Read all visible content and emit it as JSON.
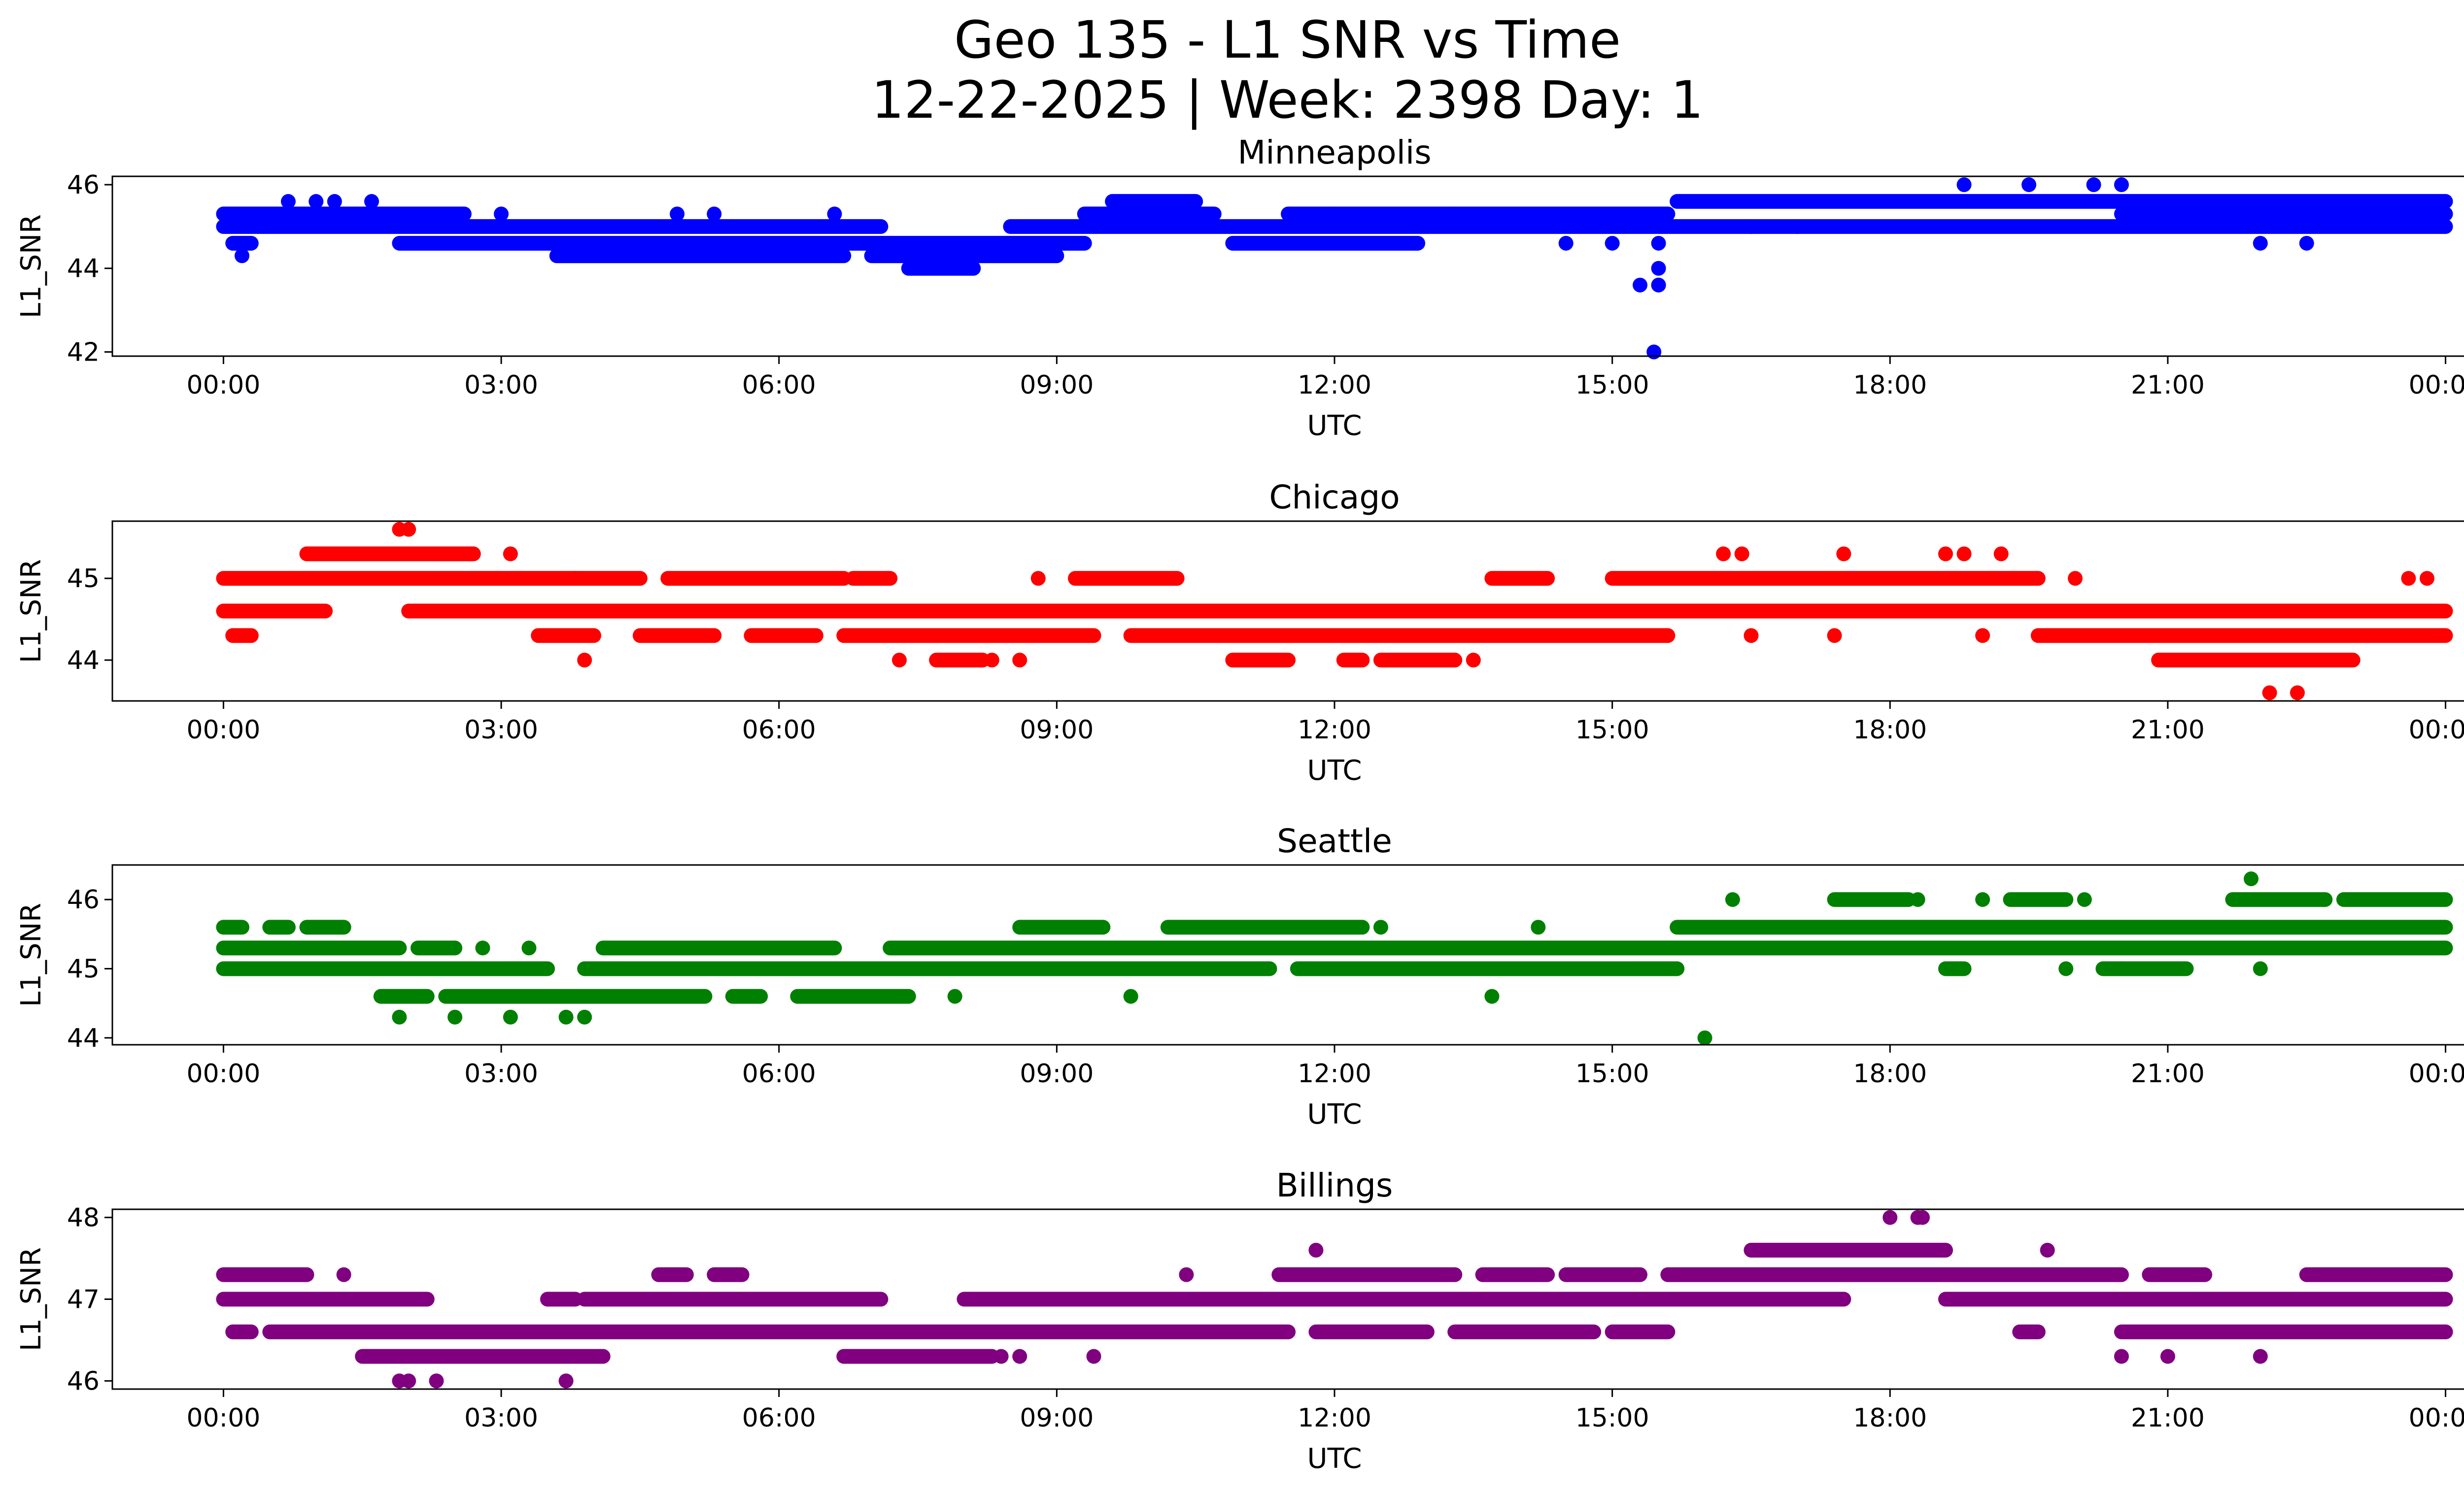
{
  "figure": {
    "title_line1": "Geo 135 - L1 SNR vs Time",
    "title_line2": "12-22-2025 | Week: 2398 Day: 1"
  },
  "chart_data": [
    {
      "type": "scatter",
      "title": "Minneapolis",
      "xlabel": "UTC",
      "ylabel": "L1_SNR",
      "color": "#0000ff",
      "xlim": [
        -1.2,
        25.2
      ],
      "ylim": [
        41.9,
        46.2
      ],
      "xticks": [
        0,
        3,
        6,
        9,
        12,
        15,
        18,
        21,
        24
      ],
      "xtick_labels": [
        "00:00",
        "03:00",
        "06:00",
        "09:00",
        "12:00",
        "15:00",
        "18:00",
        "21:00",
        "00:00"
      ],
      "yticks": [
        42,
        44,
        46
      ],
      "ytick_labels": [
        "42",
        "44",
        "46"
      ],
      "bands": [
        {
          "y": 45.3,
          "ranges": [
            [
              0,
              2.6
            ],
            [
              9.3,
              10.7
            ],
            [
              11.5,
              15.6
            ],
            [
              20.5,
              24
            ]
          ]
        },
        {
          "y": 45.0,
          "ranges": [
            [
              0,
              7.1
            ],
            [
              8.5,
              24
            ]
          ]
        },
        {
          "y": 44.6,
          "ranges": [
            [
              0.1,
              0.3
            ],
            [
              1.9,
              9.3
            ],
            [
              10.9,
              12.9
            ]
          ]
        },
        {
          "y": 44.3,
          "ranges": [
            [
              3.6,
              6.7
            ],
            [
              7.0,
              9.0
            ]
          ]
        },
        {
          "y": 44.0,
          "ranges": [
            [
              7.4,
              8.1
            ]
          ]
        },
        {
          "y": 45.6,
          "ranges": [
            [
              9.6,
              10.5
            ],
            [
              15.7,
              24
            ]
          ]
        }
      ],
      "x": [
        0.2,
        0.7,
        1.0,
        1.2,
        1.6,
        3.0,
        4.9,
        5.3,
        6.6,
        10.0,
        12.0,
        13.3,
        14.5,
        15.0,
        15.3,
        15.5,
        15.5,
        15.45,
        15.5,
        15.5,
        16.5,
        17.0,
        18.8,
        19.5,
        20.2,
        20.5,
        22.0,
        22.5
      ],
      "y": [
        44.3,
        45.6,
        45.6,
        45.6,
        45.6,
        45.3,
        45.3,
        45.3,
        45.3,
        45.6,
        45.3,
        45.3,
        44.6,
        44.6,
        43.6,
        44.0,
        43.6,
        42.0,
        44.6,
        43.6,
        45.0,
        45.0,
        46.0,
        46.0,
        46.0,
        46.0,
        44.6,
        44.6
      ]
    },
    {
      "type": "scatter",
      "title": "Chicago",
      "xlabel": "UTC",
      "ylabel": "L1_SNR",
      "color": "#ff0000",
      "xlim": [
        -1.2,
        25.2
      ],
      "ylim": [
        43.5,
        45.7
      ],
      "xticks": [
        0,
        3,
        6,
        9,
        12,
        15,
        18,
        21,
        24
      ],
      "xtick_labels": [
        "00:00",
        "03:00",
        "06:00",
        "09:00",
        "12:00",
        "15:00",
        "18:00",
        "21:00",
        "00:00"
      ],
      "yticks": [
        44,
        45
      ],
      "ytick_labels": [
        "44",
        "45"
      ],
      "bands": [
        {
          "y": 45.3,
          "ranges": [
            [
              0.9,
              2.7
            ]
          ]
        },
        {
          "y": 45.0,
          "ranges": [
            [
              0,
              3.8
            ],
            [
              3.8,
              4.5
            ],
            [
              4.8,
              6.7
            ],
            [
              6.8,
              7.2
            ],
            [
              9.2,
              10.3
            ],
            [
              13.7,
              14.3
            ],
            [
              15.0,
              19.6
            ]
          ]
        },
        {
          "y": 44.6,
          "ranges": [
            [
              0,
              1.1
            ],
            [
              2.0,
              24
            ]
          ]
        },
        {
          "y": 44.3,
          "ranges": [
            [
              0.1,
              0.3
            ],
            [
              3.4,
              4.0
            ],
            [
              4.5,
              5.3
            ],
            [
              5.7,
              6.4
            ],
            [
              6.7,
              9.4
            ],
            [
              9.8,
              15.6
            ],
            [
              19.6,
              24
            ]
          ]
        },
        {
          "y": 44.0,
          "ranges": [
            [
              7.7,
              8.2
            ],
            [
              10.9,
              11.5
            ],
            [
              12.1,
              12.3
            ],
            [
              12.5,
              13.3
            ],
            [
              20.9,
              23.0
            ]
          ]
        },
        {
          "y": 43.6,
          "ranges": []
        }
      ],
      "x": [
        1.9,
        2.0,
        3.1,
        3.9,
        7.3,
        8.3,
        8.6,
        8.8,
        13.5,
        16.2,
        16.4,
        16.5,
        17.4,
        17.5,
        18.6,
        18.8,
        19.0,
        19.2,
        20.0,
        22.1,
        22.4,
        23.6,
        23.8
      ],
      "y": [
        45.6,
        45.6,
        45.3,
        44.0,
        44.0,
        44.0,
        44.0,
        45.0,
        44.0,
        45.3,
        45.3,
        44.3,
        44.3,
        45.3,
        45.3,
        45.3,
        44.3,
        45.3,
        45.0,
        43.6,
        43.6,
        45.0,
        45.0
      ]
    },
    {
      "type": "scatter",
      "title": "Seattle",
      "xlabel": "UTC",
      "ylabel": "L1_SNR",
      "color": "#008000",
      "xlim": [
        -1.2,
        25.2
      ],
      "ylim": [
        43.9,
        46.5
      ],
      "xticks": [
        0,
        3,
        6,
        9,
        12,
        15,
        18,
        21,
        24
      ],
      "xtick_labels": [
        "00:00",
        "03:00",
        "06:00",
        "09:00",
        "12:00",
        "15:00",
        "18:00",
        "21:00",
        "00:00"
      ],
      "yticks": [
        44,
        45,
        46
      ],
      "ytick_labels": [
        "44",
        "45",
        "46"
      ],
      "bands": [
        {
          "y": 45.6,
          "ranges": [
            [
              0,
              0.2
            ],
            [
              0.5,
              0.7
            ],
            [
              0.9,
              1.3
            ],
            [
              8.6,
              9.5
            ],
            [
              10.2,
              12.3
            ],
            [
              15.7,
              24
            ]
          ]
        },
        {
          "y": 45.3,
          "ranges": [
            [
              0,
              1.9
            ],
            [
              2.1,
              2.5
            ],
            [
              4.1,
              6.6
            ],
            [
              7.2,
              24
            ]
          ]
        },
        {
          "y": 45.0,
          "ranges": [
            [
              0,
              3.5
            ],
            [
              3.9,
              11.3
            ],
            [
              11.6,
              15.7
            ],
            [
              18.6,
              18.8
            ],
            [
              20.3,
              21.2
            ]
          ]
        },
        {
          "y": 44.6,
          "ranges": [
            [
              1.7,
              2.2
            ],
            [
              2.4,
              5.2
            ],
            [
              5.5,
              5.8
            ],
            [
              6.2,
              7.4
            ]
          ]
        },
        {
          "y": 46.0,
          "ranges": [
            [
              17.4,
              18.2
            ],
            [
              19.3,
              19.9
            ],
            [
              21.7,
              22.7
            ],
            [
              22.9,
              24
            ]
          ]
        }
      ],
      "x": [
        1.9,
        2.5,
        2.8,
        3.1,
        3.3,
        3.7,
        3.9,
        7.9,
        9.8,
        12.5,
        13.7,
        14.2,
        16.0,
        16.3,
        18.3,
        19.0,
        19.9,
        20.1,
        20.5,
        22.0,
        21.9
      ],
      "y": [
        44.3,
        44.3,
        45.3,
        44.3,
        45.3,
        44.3,
        44.3,
        44.6,
        44.6,
        45.6,
        44.6,
        45.6,
        44.0,
        46.0,
        46.0,
        46.0,
        45.0,
        46.0,
        45.0,
        45.0,
        46.3
      ]
    },
    {
      "type": "scatter",
      "title": "Billings",
      "xlabel": "UTC",
      "ylabel": "L1_SNR",
      "color": "#800080",
      "xlim": [
        -1.2,
        25.2
      ],
      "ylim": [
        45.9,
        48.1
      ],
      "xticks": [
        0,
        3,
        6,
        9,
        12,
        15,
        18,
        21,
        24
      ],
      "xtick_labels": [
        "00:00",
        "03:00",
        "06:00",
        "09:00",
        "12:00",
        "15:00",
        "18:00",
        "21:00",
        "00:00"
      ],
      "yticks": [
        46,
        47,
        48
      ],
      "ytick_labels": [
        "46",
        "47",
        "48"
      ],
      "bands": [
        {
          "y": 47.3,
          "ranges": [
            [
              0,
              0.9
            ],
            [
              4.7,
              5.0
            ],
            [
              5.3,
              5.6
            ],
            [
              11.4,
              13.3
            ],
            [
              13.6,
              14.3
            ],
            [
              14.5,
              15.3
            ],
            [
              15.6,
              20.5
            ],
            [
              20.8,
              21.4
            ],
            [
              22.5,
              24
            ]
          ]
        },
        {
          "y": 47.0,
          "ranges": [
            [
              0,
              2.2
            ],
            [
              3.5,
              3.8
            ],
            [
              3.9,
              7.1
            ],
            [
              8.0,
              17.5
            ],
            [
              18.6,
              24
            ]
          ]
        },
        {
          "y": 46.6,
          "ranges": [
            [
              0.1,
              0.3
            ],
            [
              0.5,
              11.5
            ],
            [
              11.8,
              13.0
            ],
            [
              13.3,
              14.8
            ],
            [
              15.0,
              15.6
            ],
            [
              19.4,
              19.6
            ],
            [
              20.5,
              24
            ]
          ]
        },
        {
          "y": 46.3,
          "ranges": [
            [
              1.5,
              4.1
            ],
            [
              6.7,
              8.3
            ]
          ]
        },
        {
          "y": 47.6,
          "ranges": [
            [
              16.5,
              18.6
            ]
          ]
        }
      ],
      "x": [
        1.3,
        1.9,
        2.0,
        2.3,
        3.7,
        8.4,
        8.6,
        9.4,
        11.8,
        18.0,
        18.3,
        18.35,
        19.7,
        20.5,
        21.0,
        22.0,
        24.0,
        10.4
      ],
      "y": [
        47.3,
        46.0,
        46.0,
        46.0,
        46.0,
        46.3,
        46.3,
        46.3,
        47.6,
        48.0,
        48.0,
        48.0,
        47.6,
        46.3,
        46.3,
        46.3,
        46.6,
        47.3
      ]
    }
  ]
}
